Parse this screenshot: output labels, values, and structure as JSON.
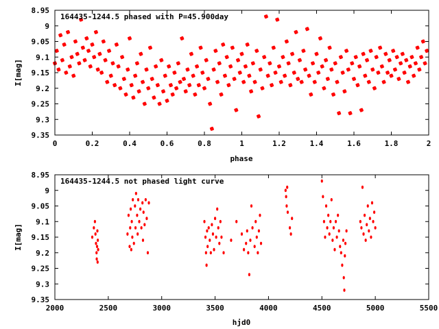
{
  "chart_data": [
    {
      "type": "scatter",
      "title": "164435-1244.5 phased with P=45.900day",
      "xlabel": "phase",
      "ylabel": "I[mag]",
      "xlim": [
        0,
        2
      ],
      "ylim": [
        9.35,
        8.95
      ],
      "y_inverted": true,
      "grid": false,
      "marker": "star",
      "color": "#ff0000",
      "x_ticks": [
        0,
        0.2,
        0.4,
        0.6,
        0.8,
        1,
        1.2,
        1.4,
        1.6,
        1.8,
        2
      ],
      "x_tick_labels": [
        "0",
        "0.2",
        "0.4",
        "0.6",
        "0.8",
        "1",
        "1.2",
        "1.4",
        "1.6",
        "1.8",
        "2"
      ],
      "y_ticks": [
        8.95,
        9,
        9.05,
        9.1,
        9.15,
        9.2,
        9.25,
        9.3,
        9.35
      ],
      "y_tick_labels": [
        "8.95",
        "9",
        "9.05",
        "9.1",
        "9.15",
        "9.2",
        "9.25",
        "9.3",
        "9.35"
      ],
      "points": [
        [
          0.0,
          9.12
        ],
        [
          0.01,
          9.08
        ],
        [
          0.02,
          9.14
        ],
        [
          0.03,
          9.03
        ],
        [
          0.04,
          9.11
        ],
        [
          0.05,
          9.06
        ],
        [
          0.06,
          9.15
        ],
        [
          0.07,
          9.02
        ],
        [
          0.08,
          9.13
        ],
        [
          0.09,
          9.1
        ],
        [
          0.1,
          9.16
        ],
        [
          0.11,
          9.05
        ],
        [
          0.12,
          9.09
        ],
        [
          0.13,
          9.12
        ],
        [
          0.14,
          8.98
        ],
        [
          0.15,
          9.07
        ],
        [
          0.16,
          9.11
        ],
        [
          0.17,
          9.04
        ],
        [
          0.18,
          9.08
        ],
        [
          0.19,
          9.13
        ],
        [
          0.2,
          9.06
        ],
        [
          0.21,
          9.1
        ],
        [
          0.22,
          9.02
        ],
        [
          0.23,
          9.14
        ],
        [
          0.24,
          9.09
        ],
        [
          0.25,
          9.15
        ],
        [
          0.26,
          9.05
        ],
        [
          0.27,
          9.11
        ],
        [
          0.28,
          9.18
        ],
        [
          0.29,
          9.08
        ],
        [
          0.3,
          9.16
        ],
        [
          0.31,
          9.12
        ],
        [
          0.32,
          9.19
        ],
        [
          0.33,
          9.06
        ],
        [
          0.34,
          9.13
        ],
        [
          0.35,
          9.2
        ],
        [
          0.36,
          9.1
        ],
        [
          0.37,
          9.17
        ],
        [
          0.38,
          9.22
        ],
        [
          0.39,
          9.14
        ],
        [
          0.4,
          9.04
        ],
        [
          0.41,
          9.19
        ],
        [
          0.42,
          9.23
        ],
        [
          0.43,
          9.16
        ],
        [
          0.44,
          9.12
        ],
        [
          0.45,
          9.21
        ],
        [
          0.46,
          9.09
        ],
        [
          0.47,
          9.18
        ],
        [
          0.48,
          9.25
        ],
        [
          0.49,
          9.14
        ],
        [
          0.5,
          9.2
        ],
        [
          0.51,
          9.07
        ],
        [
          0.52,
          9.17
        ],
        [
          0.53,
          9.23
        ],
        [
          0.54,
          9.13
        ],
        [
          0.55,
          9.19
        ],
        [
          0.56,
          9.25
        ],
        [
          0.57,
          9.11
        ],
        [
          0.58,
          9.21
        ],
        [
          0.59,
          9.16
        ],
        [
          0.6,
          9.24
        ],
        [
          0.61,
          9.13
        ],
        [
          0.62,
          9.19
        ],
        [
          0.63,
          9.22
        ],
        [
          0.64,
          9.15
        ],
        [
          0.65,
          9.2
        ],
        [
          0.66,
          9.12
        ],
        [
          0.67,
          9.18
        ],
        [
          0.68,
          9.04
        ],
        [
          0.69,
          9.17
        ],
        [
          0.7,
          9.21
        ],
        [
          0.71,
          9.14
        ],
        [
          0.72,
          9.19
        ],
        [
          0.73,
          9.09
        ],
        [
          0.74,
          9.16
        ],
        [
          0.75,
          9.22
        ],
        [
          0.76,
          9.13
        ],
        [
          0.77,
          9.19
        ],
        [
          0.78,
          9.07
        ],
        [
          0.79,
          9.15
        ],
        [
          0.8,
          9.2
        ],
        [
          0.81,
          9.11
        ],
        [
          0.82,
          9.17
        ],
        [
          0.83,
          9.25
        ],
        [
          0.84,
          9.33
        ],
        [
          0.85,
          9.14
        ],
        [
          0.86,
          9.08
        ],
        [
          0.87,
          9.18
        ],
        [
          0.88,
          9.12
        ],
        [
          0.89,
          9.22
        ],
        [
          0.9,
          9.06
        ],
        [
          0.91,
          9.16
        ],
        [
          0.92,
          9.1
        ],
        [
          0.93,
          9.19
        ],
        [
          0.94,
          9.13
        ],
        [
          0.95,
          9.07
        ],
        [
          0.96,
          9.17
        ],
        [
          0.97,
          9.27
        ],
        [
          0.98,
          9.11
        ],
        [
          0.99,
          9.15
        ],
        [
          1.0,
          9.09
        ],
        [
          1.01,
          9.18
        ],
        [
          1.02,
          9.13
        ],
        [
          1.03,
          9.06
        ],
        [
          1.04,
          9.16
        ],
        [
          1.05,
          9.21
        ],
        [
          1.06,
          9.12
        ],
        [
          1.07,
          9.18
        ],
        [
          1.08,
          9.08
        ],
        [
          1.09,
          9.29
        ],
        [
          1.1,
          9.14
        ],
        [
          1.11,
          9.2
        ],
        [
          1.12,
          9.1
        ],
        [
          1.13,
          8.97
        ],
        [
          1.14,
          9.16
        ],
        [
          1.15,
          9.12
        ],
        [
          1.16,
          9.19
        ],
        [
          1.17,
          9.07
        ],
        [
          1.18,
          9.15
        ],
        [
          1.19,
          8.98
        ],
        [
          1.2,
          9.13
        ],
        [
          1.21,
          9.18
        ],
        [
          1.22,
          9.1
        ],
        [
          1.23,
          9.16
        ],
        [
          1.24,
          9.05
        ],
        [
          1.25,
          9.12
        ],
        [
          1.26,
          9.19
        ],
        [
          1.27,
          9.09
        ],
        [
          1.28,
          9.15
        ],
        [
          1.29,
          9.02
        ],
        [
          1.3,
          9.17
        ],
        [
          1.31,
          9.11
        ],
        [
          1.32,
          9.18
        ],
        [
          1.33,
          9.08
        ],
        [
          1.34,
          9.14
        ],
        [
          1.35,
          9.01
        ],
        [
          1.36,
          9.16
        ],
        [
          1.37,
          9.22
        ],
        [
          1.38,
          9.12
        ],
        [
          1.39,
          9.18
        ],
        [
          1.4,
          9.09
        ],
        [
          1.41,
          9.15
        ],
        [
          1.42,
          9.04
        ],
        [
          1.43,
          9.13
        ],
        [
          1.44,
          9.2
        ],
        [
          1.45,
          9.11
        ],
        [
          1.46,
          9.17
        ],
        [
          1.47,
          9.07
        ],
        [
          1.48,
          9.14
        ],
        [
          1.49,
          9.22
        ],
        [
          1.5,
          9.12
        ],
        [
          1.51,
          9.18
        ],
        [
          1.52,
          9.28
        ],
        [
          1.53,
          9.1
        ],
        [
          1.54,
          9.15
        ],
        [
          1.55,
          9.21
        ],
        [
          1.56,
          9.08
        ],
        [
          1.57,
          9.14
        ],
        [
          1.58,
          9.28
        ],
        [
          1.59,
          9.12
        ],
        [
          1.6,
          9.17
        ],
        [
          1.61,
          9.1
        ],
        [
          1.62,
          9.19
        ],
        [
          1.63,
          9.13
        ],
        [
          1.64,
          9.27
        ],
        [
          1.65,
          9.09
        ],
        [
          1.66,
          9.16
        ],
        [
          1.67,
          9.11
        ],
        [
          1.68,
          9.18
        ],
        [
          1.69,
          9.08
        ],
        [
          1.7,
          9.14
        ],
        [
          1.71,
          9.2
        ],
        [
          1.72,
          9.1
        ],
        [
          1.73,
          9.15
        ],
        [
          1.74,
          9.07
        ],
        [
          1.75,
          9.13
        ],
        [
          1.76,
          9.18
        ],
        [
          1.77,
          9.09
        ],
        [
          1.78,
          9.15
        ],
        [
          1.79,
          9.11
        ],
        [
          1.8,
          9.16
        ],
        [
          1.81,
          9.08
        ],
        [
          1.82,
          9.14
        ],
        [
          1.83,
          9.1
        ],
        [
          1.84,
          9.17
        ],
        [
          1.85,
          9.12
        ],
        [
          1.86,
          9.09
        ],
        [
          1.87,
          9.15
        ],
        [
          1.88,
          9.11
        ],
        [
          1.89,
          9.18
        ],
        [
          1.9,
          9.13
        ],
        [
          1.91,
          9.1
        ],
        [
          1.92,
          9.16
        ],
        [
          1.93,
          9.12
        ],
        [
          1.94,
          9.07
        ],
        [
          1.95,
          9.14
        ],
        [
          1.96,
          9.1
        ],
        [
          1.97,
          9.05
        ],
        [
          1.98,
          9.12
        ],
        [
          1.99,
          9.08
        ]
      ]
    },
    {
      "type": "scatter",
      "title": "164435-1244.5 not phased light curve",
      "xlabel": "hjd0",
      "ylabel": "I[mag]",
      "xlim": [
        2000,
        5500
      ],
      "ylim": [
        9.35,
        8.95
      ],
      "y_inverted": true,
      "grid": false,
      "marker": "dot",
      "color": "#ff0000",
      "x_ticks": [
        2000,
        2500,
        3000,
        3500,
        4000,
        4500,
        5000,
        5500
      ],
      "x_tick_labels": [
        "2000",
        "2500",
        "3000",
        "3500",
        "4000",
        "4500",
        "5000",
        "5500"
      ],
      "y_ticks": [
        8.95,
        9,
        9.05,
        9.1,
        9.15,
        9.2,
        9.25,
        9.3,
        9.35
      ],
      "y_tick_labels": [
        "8.95",
        "9",
        "9.05",
        "9.1",
        "9.15",
        "9.2",
        "9.25",
        "9.3",
        "9.35"
      ],
      "points": [
        [
          2350,
          9.15
        ],
        [
          2365,
          9.12
        ],
        [
          2375,
          9.1
        ],
        [
          2380,
          9.14
        ],
        [
          2385,
          9.17
        ],
        [
          2390,
          9.2
        ],
        [
          2392,
          9.22
        ],
        [
          2395,
          9.18
        ],
        [
          2398,
          9.13
        ],
        [
          2400,
          9.23
        ],
        [
          2402,
          9.16
        ],
        [
          2405,
          9.19
        ],
        [
          2680,
          9.14
        ],
        [
          2690,
          9.08
        ],
        [
          2700,
          9.18
        ],
        [
          2705,
          9.12
        ],
        [
          2710,
          9.06
        ],
        [
          2715,
          9.19
        ],
        [
          2720,
          9.1
        ],
        [
          2725,
          9.15
        ],
        [
          2730,
          9.03
        ],
        [
          2740,
          9.17
        ],
        [
          2750,
          9.05
        ],
        [
          2755,
          9.12
        ],
        [
          2760,
          9.01
        ],
        [
          2770,
          9.08
        ],
        [
          2775,
          9.14
        ],
        [
          2780,
          9.03
        ],
        [
          2790,
          9.1
        ],
        [
          2800,
          9.06
        ],
        [
          2810,
          9.12
        ],
        [
          2820,
          9.04
        ],
        [
          2825,
          9.16
        ],
        [
          2830,
          9.07
        ],
        [
          2840,
          9.11
        ],
        [
          2850,
          9.03
        ],
        [
          2860,
          9.09
        ],
        [
          2870,
          9.2
        ],
        [
          2880,
          9.04
        ],
        [
          3400,
          9.1
        ],
        [
          3410,
          9.15
        ],
        [
          3415,
          9.2
        ],
        [
          3420,
          9.24
        ],
        [
          3425,
          9.13
        ],
        [
          3430,
          9.18
        ],
        [
          3440,
          9.12
        ],
        [
          3450,
          9.16
        ],
        [
          3460,
          9.2
        ],
        [
          3470,
          9.11
        ],
        [
          3480,
          9.14
        ],
        [
          3490,
          9.19
        ],
        [
          3500,
          9.09
        ],
        [
          3510,
          9.15
        ],
        [
          3520,
          9.06
        ],
        [
          3530,
          9.12
        ],
        [
          3540,
          9.17
        ],
        [
          3550,
          9.1
        ],
        [
          3560,
          9.15
        ],
        [
          3580,
          9.2
        ],
        [
          3650,
          9.16
        ],
        [
          3700,
          9.1
        ],
        [
          3750,
          9.14
        ],
        [
          3770,
          9.19
        ],
        [
          3790,
          9.17
        ],
        [
          3800,
          9.13
        ],
        [
          3810,
          9.2
        ],
        [
          3820,
          9.27
        ],
        [
          3830,
          9.16
        ],
        [
          3840,
          9.05
        ],
        [
          3850,
          9.12
        ],
        [
          3870,
          9.18
        ],
        [
          3880,
          9.1
        ],
        [
          3890,
          9.15
        ],
        [
          3900,
          9.2
        ],
        [
          3910,
          9.13
        ],
        [
          3920,
          9.08
        ],
        [
          3930,
          9.17
        ],
        [
          4160,
          9.0
        ],
        [
          4165,
          9.02
        ],
        [
          4170,
          9.05
        ],
        [
          4175,
          8.99
        ],
        [
          4180,
          9.07
        ],
        [
          4200,
          9.12
        ],
        [
          4210,
          9.14
        ],
        [
          4220,
          9.09
        ],
        [
          4500,
          8.97
        ],
        [
          4510,
          9.02
        ],
        [
          4520,
          9.1
        ],
        [
          4530,
          9.15
        ],
        [
          4540,
          9.05
        ],
        [
          4550,
          9.12
        ],
        [
          4560,
          9.08
        ],
        [
          4570,
          9.14
        ],
        [
          4580,
          9.1
        ],
        [
          4590,
          9.03
        ],
        [
          4600,
          9.16
        ],
        [
          4610,
          9.12
        ],
        [
          4620,
          9.19
        ],
        [
          4630,
          9.1
        ],
        [
          4640,
          9.15
        ],
        [
          4650,
          9.08
        ],
        [
          4660,
          9.13
        ],
        [
          4670,
          9.18
        ],
        [
          4680,
          9.2
        ],
        [
          4690,
          9.24
        ],
        [
          4700,
          9.16
        ],
        [
          4705,
          9.28
        ],
        [
          4710,
          9.32
        ],
        [
          4715,
          9.21
        ],
        [
          4720,
          9.17
        ],
        [
          4730,
          9.13
        ],
        [
          4860,
          9.1
        ],
        [
          4870,
          9.12
        ],
        [
          4880,
          8.99
        ],
        [
          4890,
          9.14
        ],
        [
          4900,
          9.08
        ],
        [
          4910,
          9.16
        ],
        [
          4920,
          9.11
        ],
        [
          4930,
          9.05
        ],
        [
          4940,
          9.13
        ],
        [
          4950,
          9.09
        ],
        [
          4960,
          9.15
        ],
        [
          4970,
          9.04
        ],
        [
          4980,
          9.1
        ],
        [
          4990,
          9.07
        ],
        [
          5000,
          9.12
        ]
      ]
    }
  ]
}
